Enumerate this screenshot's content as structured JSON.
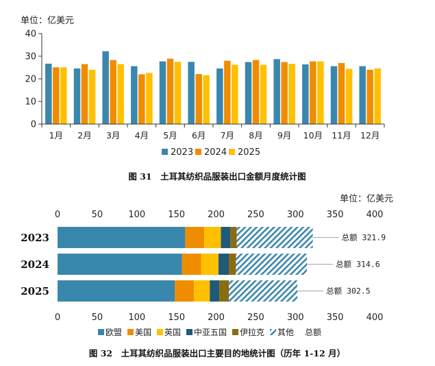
{
  "chart_data": [
    {
      "type": "bar",
      "unit_label": "单位：亿美元",
      "title": "图 31　土耳其纺织品服装出口金额月度统计图",
      "categories": [
        "1月",
        "2月",
        "3月",
        "4月",
        "5月",
        "6月",
        "7月",
        "8月",
        "9月",
        "10月",
        "11月",
        "12月"
      ],
      "ylim": [
        0,
        40
      ],
      "yticks": [
        0,
        10,
        20,
        30,
        40
      ],
      "grid": false,
      "legend_position": "bottom",
      "series": [
        {
          "name": "2023",
          "color": "#3a87ad",
          "values": [
            26.7,
            24.6,
            32.2,
            25.6,
            27.7,
            27.5,
            24.6,
            27.4,
            28.7,
            26.4,
            25.6,
            25.6
          ]
        },
        {
          "name": "2024",
          "color": "#f08c00",
          "values": [
            25.1,
            26.5,
            28.3,
            22.0,
            28.9,
            22.1,
            28.0,
            28.3,
            27.4,
            27.7,
            27.0,
            24.0
          ]
        },
        {
          "name": "2025",
          "color": "#ffc000",
          "values": [
            25.1,
            24.0,
            26.5,
            22.6,
            27.5,
            21.6,
            26.2,
            26.2,
            26.6,
            27.7,
            24.4,
            24.6
          ]
        }
      ]
    },
    {
      "type": "stacked_bar_horizontal",
      "unit_label": "单位：亿美元",
      "title": "图 32　土耳其纺织品服装出口主要目的地统计图（历年 1-12 月）",
      "categories": [
        "2023",
        "2024",
        "2025"
      ],
      "xlim": [
        0,
        400
      ],
      "xticks": [
        0,
        50,
        100,
        150,
        200,
        250,
        300,
        350,
        400
      ],
      "legend_position": "bottom",
      "series": [
        {
          "name": "欧盟",
          "color": "#3a87ad",
          "values": [
            161,
            157,
            148
          ]
        },
        {
          "name": "美国",
          "color": "#f08c00",
          "values": [
            24,
            24,
            24
          ]
        },
        {
          "name": "英国",
          "color": "#ffc000",
          "values": [
            21,
            22,
            20
          ]
        },
        {
          "name": "中亚五国",
          "color": "#1f5a7a",
          "values": [
            12,
            13,
            12
          ]
        },
        {
          "name": "伊拉克",
          "color": "#8a6d10",
          "values": [
            8,
            9,
            12
          ]
        },
        {
          "name": "其他",
          "color": "#3a87ad",
          "pattern": "hatch",
          "values": [
            95.9,
            89.6,
            86.5
          ]
        }
      ],
      "totals": {
        "name": "总额",
        "values": [
          321.9,
          314.6,
          302.5
        ],
        "label_prefix": "总额 "
      }
    }
  ]
}
